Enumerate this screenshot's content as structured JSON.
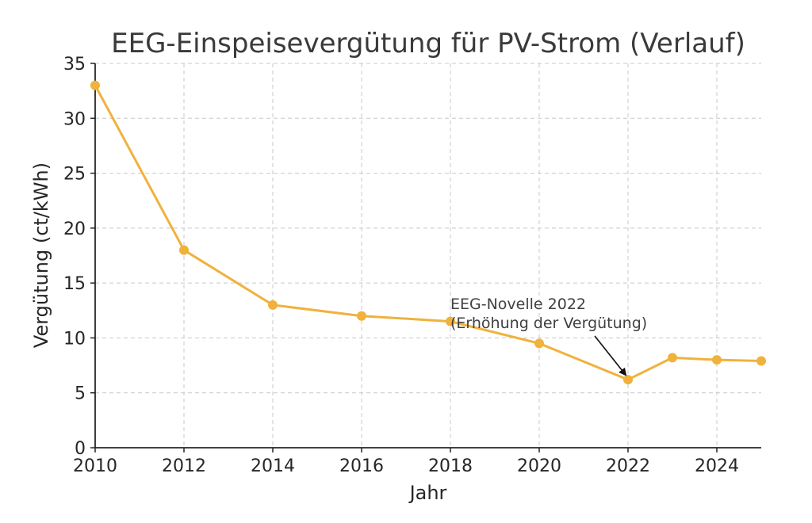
{
  "chart_data": {
    "type": "line",
    "title": "EEG-Einspeisevergütung für PV-Strom (Verlauf)",
    "xlabel": "Jahr",
    "ylabel": "Vergütung (ct/kWh)",
    "xlim": [
      2010,
      2025
    ],
    "ylim": [
      0,
      35
    ],
    "xticks": [
      "2010",
      "2012",
      "2014",
      "2016",
      "2018",
      "2020",
      "2022",
      "2024"
    ],
    "yticks": [
      "0",
      "5",
      "10",
      "15",
      "20",
      "25",
      "30",
      "35"
    ],
    "grid": true,
    "grid_style": "dashed",
    "legend": "none",
    "color": "#f0b23c",
    "series": [
      {
        "x": [
          2010,
          2012,
          2014,
          2016,
          2018,
          2020,
          2022,
          2023,
          2024,
          2025
        ],
        "y": [
          33,
          18,
          13,
          12,
          11.5,
          9.5,
          6.2,
          8.2,
          8.0,
          7.9
        ]
      }
    ],
    "annotation": {
      "line1": "EEG-Novelle 2022",
      "line2": "(Erhöhung der Vergütung)",
      "target_x": 2022,
      "target_y": 6.2,
      "text_x": 2018,
      "text_y": 12.2
    }
  }
}
